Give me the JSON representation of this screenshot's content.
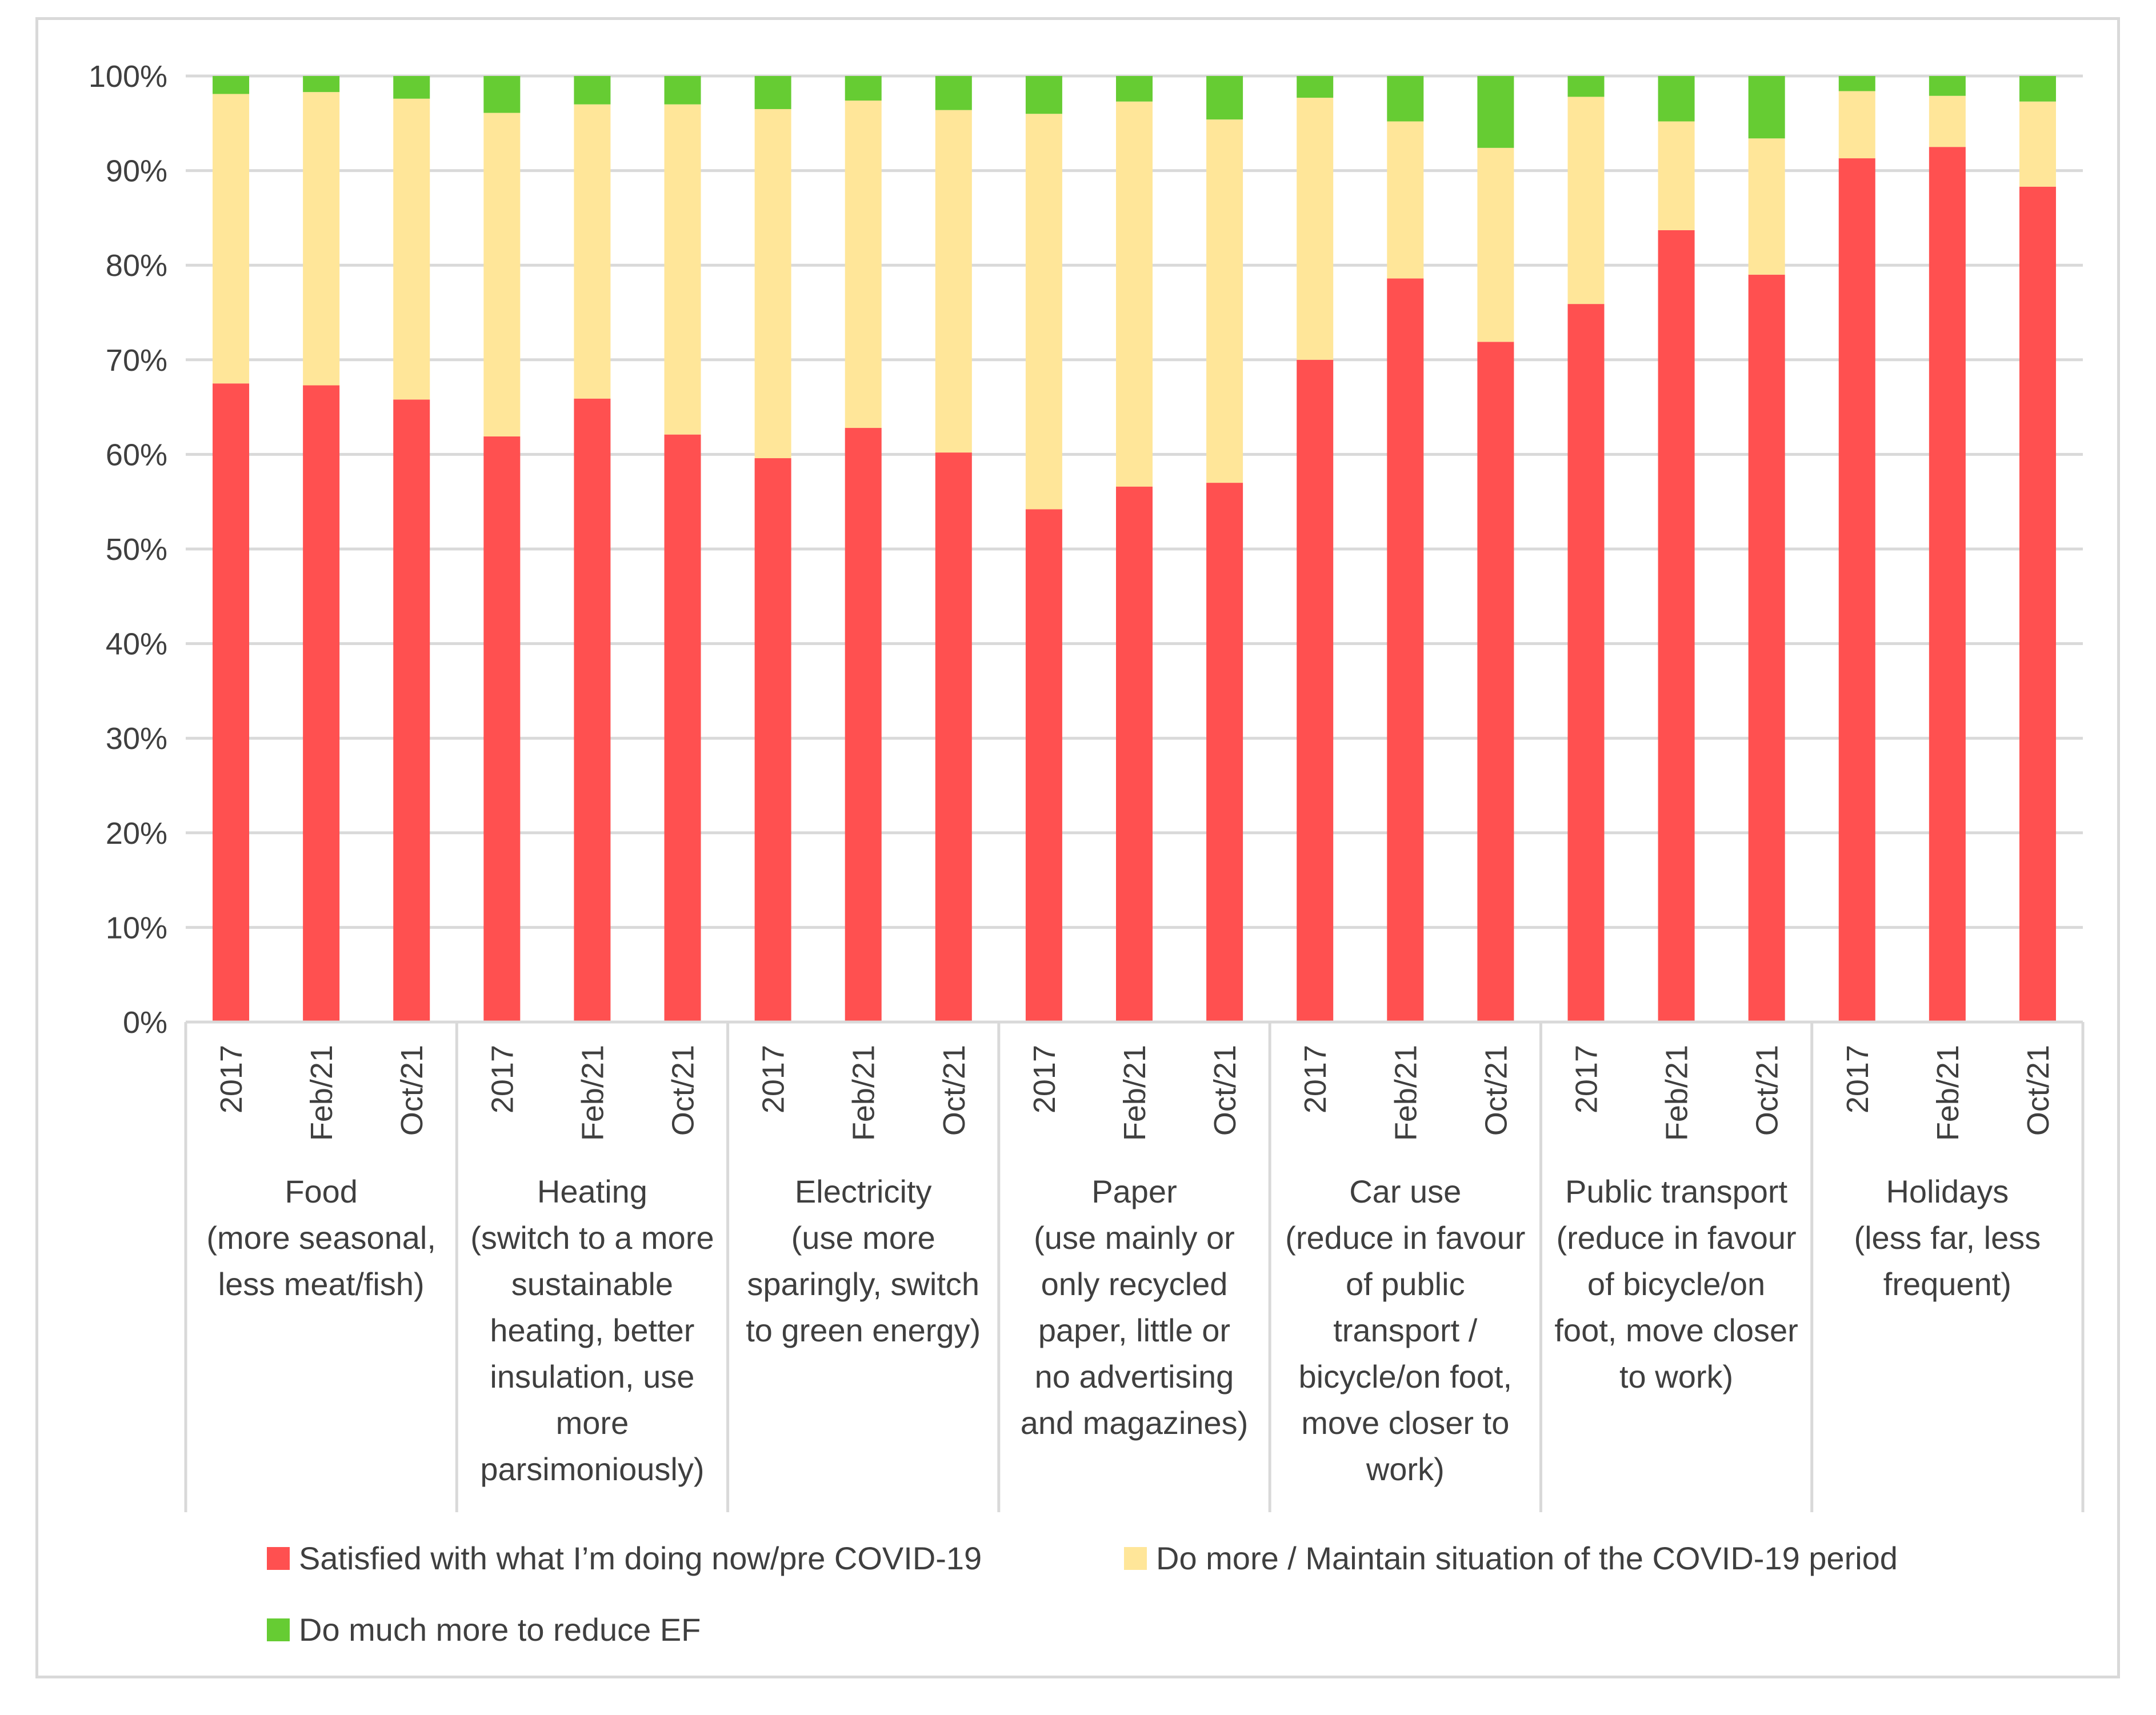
{
  "chart_data": {
    "type": "bar",
    "stacked": true,
    "title": "",
    "xlabel": "",
    "ylabel": "",
    "ylim": [
      0,
      100
    ],
    "y_ticks": [
      "0%",
      "10%",
      "20%",
      "30%",
      "40%",
      "50%",
      "60%",
      "70%",
      "80%",
      "90%",
      "100%"
    ],
    "periods": [
      "2017",
      "Feb/21",
      "Oct/21"
    ],
    "groups": [
      {
        "lines": [
          "Food",
          "(more seasonal,",
          "less meat/fish)"
        ]
      },
      {
        "lines": [
          "Heating",
          "(switch to a more",
          "sustainable",
          "heating, better",
          "insulation, use",
          "more",
          "parsimoniously)"
        ]
      },
      {
        "lines": [
          "Electricity",
          "(use more",
          "sparingly, switch",
          "to green energy)"
        ]
      },
      {
        "lines": [
          "Paper",
          "(use mainly or",
          "only recycled",
          "paper,  little or",
          "no advertising",
          "and magazines)"
        ]
      },
      {
        "lines": [
          "Car use",
          "(reduce in favour",
          "of public",
          "transport /",
          "bicycle/on foot,",
          "move closer to",
          "work)"
        ]
      },
      {
        "lines": [
          "Public transport",
          "(reduce in favour",
          "of bicycle/on",
          "foot, move closer",
          "to work)"
        ]
      },
      {
        "lines": [
          "Holidays",
          "(less far, less",
          "frequent)"
        ]
      }
    ],
    "series": [
      {
        "name": "Satisfied with what I’m doing now/pre COVID-19",
        "color": "#ff5050",
        "values": [
          67.5,
          67.3,
          65.8,
          61.9,
          65.9,
          62.1,
          59.6,
          62.8,
          60.2,
          54.2,
          56.6,
          57.0,
          70.0,
          78.6,
          71.9,
          75.9,
          83.7,
          79.0,
          91.3,
          92.5,
          88.3
        ]
      },
      {
        "name": "Do more / Maintain situation of the COVID-19 period",
        "color": "#ffe699",
        "values": [
          30.6,
          31.0,
          31.8,
          34.2,
          31.1,
          34.9,
          36.9,
          34.6,
          36.2,
          41.8,
          40.7,
          38.4,
          27.7,
          16.6,
          20.5,
          21.9,
          11.5,
          14.4,
          7.1,
          5.4,
          9.0
        ]
      },
      {
        "name": "Do much more to reduce EF",
        "color": "#66cc33",
        "values": [
          1.9,
          1.7,
          2.4,
          3.9,
          3.0,
          3.0,
          3.5,
          2.6,
          3.6,
          4.0,
          2.7,
          4.6,
          2.3,
          4.8,
          7.6,
          2.2,
          4.8,
          6.6,
          1.6,
          2.1,
          2.7
        ]
      }
    ],
    "legend_position": "bottom"
  }
}
